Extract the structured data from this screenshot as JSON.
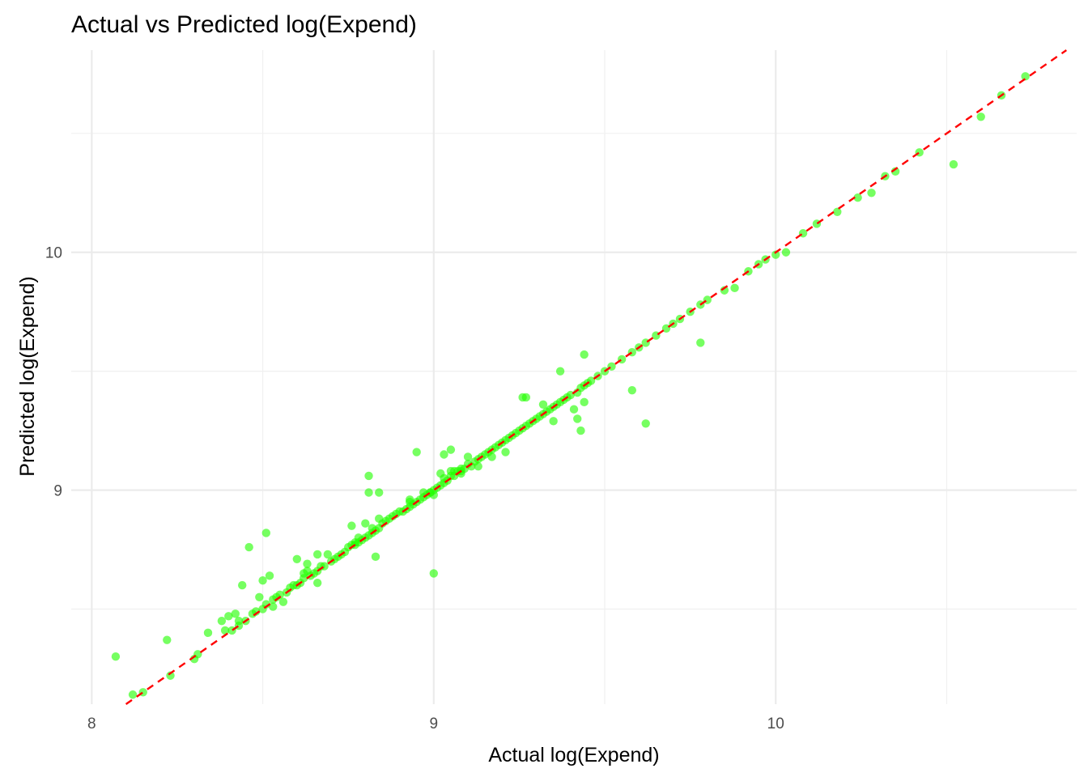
{
  "chart_data": {
    "type": "scatter",
    "title": "Actual vs Predicted log(Expend)",
    "xlabel": "Actual log(Expend)",
    "ylabel": "Predicted log(Expend)",
    "xlim": [
      7.94,
      10.88
    ],
    "ylim": [
      8.1,
      10.85
    ],
    "x_ticks": [
      8,
      9,
      10
    ],
    "y_ticks": [
      9,
      10
    ],
    "x_minor": [
      8.5,
      9.5,
      10.5
    ],
    "y_minor": [
      8.5,
      9.5,
      10.5
    ],
    "grid": true,
    "reference_line": {
      "type": "y=x",
      "color": "#ff0000",
      "style": "dashed"
    },
    "colors": {
      "points": "#22ff00",
      "reference": "#ff0000"
    },
    "series": [
      {
        "x": [
          8.07,
          8.12,
          8.15,
          8.22,
          8.23,
          8.3,
          8.31,
          8.34,
          8.38,
          8.4,
          8.41,
          8.42,
          8.43,
          8.43,
          8.44,
          8.45,
          8.47,
          8.48,
          8.49,
          8.5,
          8.5,
          8.51,
          8.52,
          8.53,
          8.53,
          8.54,
          8.55,
          8.57,
          8.58,
          8.59,
          8.6,
          8.61,
          8.62,
          8.62,
          8.63,
          8.64,
          8.65,
          8.66,
          8.66,
          8.67,
          8.68,
          8.7,
          8.71,
          8.72,
          8.73,
          8.74,
          8.75,
          8.76,
          8.77,
          8.77,
          8.78,
          8.79,
          8.8,
          8.8,
          8.81,
          8.81,
          8.82,
          8.82,
          8.83,
          8.84,
          8.84,
          8.85,
          8.86,
          8.87,
          8.88,
          8.89,
          8.9,
          8.91,
          8.92,
          8.93,
          8.93,
          8.94,
          8.95,
          8.96,
          8.97,
          8.97,
          8.98,
          8.99,
          9.0,
          9.0,
          9.01,
          9.02,
          9.03,
          9.03,
          9.04,
          9.05,
          9.06,
          9.06,
          9.07,
          9.08,
          9.08,
          9.09,
          9.1,
          9.11,
          9.12,
          9.13,
          9.14,
          9.15,
          9.16,
          9.17,
          9.18,
          9.19,
          9.2,
          9.21,
          9.22,
          9.23,
          9.24,
          9.25,
          9.26,
          9.27,
          9.28,
          9.29,
          9.3,
          9.31,
          9.32,
          9.33,
          9.34,
          9.35,
          9.36,
          9.37,
          9.38,
          9.39,
          9.4,
          9.42,
          9.43,
          9.44,
          9.45,
          9.46,
          9.48,
          9.5,
          9.52,
          9.55,
          9.58,
          9.6,
          9.62,
          9.65,
          9.68,
          9.7,
          9.72,
          9.75,
          9.78,
          9.8,
          9.85,
          9.92,
          9.95,
          9.97,
          10.0,
          10.03,
          10.08,
          10.12,
          10.18,
          10.24,
          10.28,
          10.32,
          10.35,
          10.42,
          10.52,
          10.6,
          10.66,
          10.73,
          8.51,
          8.46,
          8.6,
          8.66,
          8.78,
          8.81,
          8.83,
          8.95,
          8.99,
          9.03,
          9.05,
          9.26,
          9.44,
          9.37,
          9.62,
          9.88,
          9.35,
          8.39,
          8.56,
          9.44,
          9.58,
          9.27,
          9.43,
          9.17,
          9.02,
          9.08,
          8.84,
          8.76,
          8.69,
          9.78,
          9.42,
          9.21,
          9.1,
          9.13,
          8.93,
          8.63,
          9.32,
          9.41,
          9.05,
          9.0
        ],
        "y": [
          8.3,
          8.14,
          8.15,
          8.37,
          8.22,
          8.29,
          8.31,
          8.4,
          8.45,
          8.47,
          8.41,
          8.48,
          8.45,
          8.43,
          8.6,
          8.45,
          8.48,
          8.49,
          8.55,
          8.5,
          8.62,
          8.52,
          8.64,
          8.51,
          8.54,
          8.55,
          8.56,
          8.57,
          8.59,
          8.6,
          8.6,
          8.61,
          8.63,
          8.65,
          8.66,
          8.64,
          8.65,
          8.66,
          8.61,
          8.68,
          8.68,
          8.7,
          8.71,
          8.72,
          8.73,
          8.74,
          8.76,
          8.77,
          8.78,
          8.77,
          8.78,
          8.79,
          8.8,
          8.86,
          8.81,
          8.99,
          8.82,
          8.84,
          8.83,
          8.84,
          8.88,
          8.86,
          8.87,
          8.88,
          8.89,
          8.9,
          8.91,
          8.91,
          8.92,
          8.93,
          8.95,
          8.94,
          8.95,
          8.96,
          8.97,
          8.99,
          8.98,
          8.99,
          9.0,
          8.98,
          9.01,
          9.02,
          9.03,
          9.05,
          9.04,
          9.06,
          9.06,
          9.08,
          9.08,
          9.08,
          9.07,
          9.09,
          9.11,
          9.1,
          9.12,
          9.13,
          9.14,
          9.15,
          9.16,
          9.17,
          9.18,
          9.19,
          9.2,
          9.21,
          9.22,
          9.23,
          9.24,
          9.25,
          9.26,
          9.27,
          9.28,
          9.29,
          9.3,
          9.31,
          9.32,
          9.33,
          9.34,
          9.35,
          9.36,
          9.37,
          9.38,
          9.39,
          9.4,
          9.41,
          9.43,
          9.44,
          9.45,
          9.46,
          9.48,
          9.5,
          9.52,
          9.55,
          9.58,
          9.6,
          9.62,
          9.65,
          9.68,
          9.7,
          9.72,
          9.75,
          9.78,
          9.8,
          9.84,
          9.92,
          9.95,
          9.97,
          9.99,
          10.0,
          10.08,
          10.12,
          10.17,
          10.23,
          10.25,
          10.32,
          10.34,
          10.42,
          10.37,
          10.57,
          10.66,
          10.74,
          8.82,
          8.76,
          8.71,
          8.73,
          8.8,
          9.06,
          8.72,
          9.16,
          8.99,
          9.15,
          9.17,
          9.39,
          9.57,
          9.5,
          9.28,
          9.85,
          9.29,
          8.41,
          8.53,
          9.37,
          9.42,
          9.39,
          9.25,
          9.14,
          9.07,
          9.09,
          8.99,
          8.85,
          8.73,
          9.62,
          9.3,
          9.16,
          9.14,
          9.1,
          8.96,
          8.69,
          9.36,
          9.34,
          9.08,
          8.65
        ]
      }
    ]
  }
}
